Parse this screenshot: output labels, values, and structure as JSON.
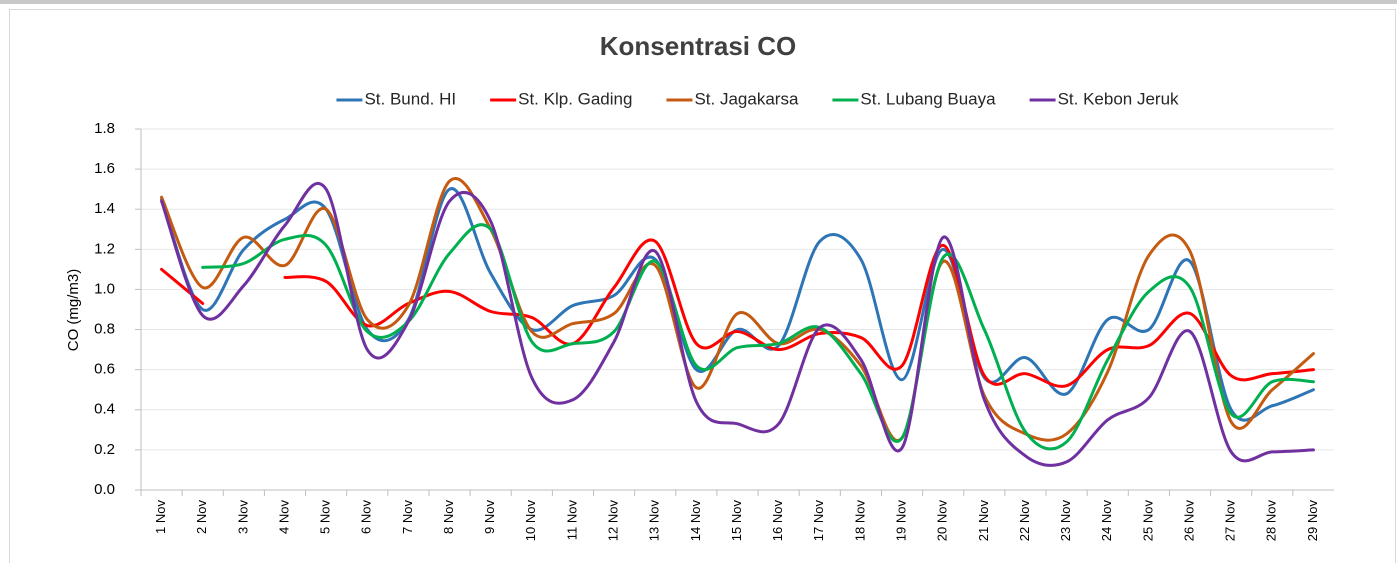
{
  "chart_data": {
    "type": "line",
    "title": "Konsentrasi CO",
    "y_label": "CO (mg/m3)",
    "categories": [
      "1 Nov",
      "2 Nov",
      "3 Nov",
      "4 Nov",
      "5 Nov",
      "6 Nov",
      "7 Nov",
      "8 Nov",
      "9 Nov",
      "10 Nov",
      "11 Nov",
      "12 Nov",
      "13 Nov",
      "14 Nov",
      "15 Nov",
      "16 Nov",
      "17 Nov",
      "18 Nov",
      "19 Nov",
      "20 Nov",
      "21 Nov",
      "22 Nov",
      "23 Nov",
      "24 Nov",
      "25 Nov",
      "26 Nov",
      "27 Nov",
      "28 Nov",
      "29 Nov"
    ],
    "series": [
      {
        "name": "St. Bund. HI",
        "color": "#2e75b6",
        "values": [
          1.45,
          0.9,
          1.2,
          1.35,
          1.4,
          0.8,
          0.85,
          1.5,
          1.08,
          0.8,
          0.92,
          0.97,
          1.15,
          0.6,
          0.8,
          0.72,
          1.24,
          1.15,
          0.55,
          1.2,
          0.56,
          0.66,
          0.48,
          0.85,
          0.8,
          1.14,
          0.4,
          0.42,
          0.5
        ]
      },
      {
        "name": "St. Klp. Gading",
        "color": "#ff0000",
        "values": [
          1.1,
          0.93,
          null,
          1.06,
          1.04,
          0.82,
          0.93,
          0.99,
          0.89,
          0.86,
          0.73,
          1.01,
          1.24,
          0.73,
          0.79,
          0.7,
          0.78,
          0.76,
          0.62,
          1.22,
          0.57,
          0.58,
          0.52,
          0.7,
          0.72,
          0.88,
          0.57,
          0.58,
          0.6
        ]
      },
      {
        "name": "St. Jagakarsa",
        "color": "#c55a11",
        "values": [
          1.46,
          1.01,
          1.26,
          1.12,
          1.4,
          0.85,
          0.92,
          1.54,
          1.3,
          0.79,
          0.83,
          0.88,
          1.12,
          0.51,
          0.88,
          0.73,
          0.8,
          0.62,
          0.26,
          1.14,
          0.47,
          0.28,
          0.28,
          0.59,
          1.17,
          1.19,
          0.34,
          0.5,
          0.68
        ]
      },
      {
        "name": "St. Lubang Buaya",
        "color": "#00b050",
        "values": [
          null,
          1.11,
          1.13,
          1.25,
          1.22,
          0.79,
          0.84,
          1.18,
          1.3,
          0.74,
          0.73,
          0.79,
          1.14,
          0.62,
          0.71,
          0.73,
          0.81,
          0.58,
          0.26,
          1.16,
          0.8,
          0.29,
          0.24,
          0.65,
          0.99,
          1.01,
          0.38,
          0.54,
          0.54
        ]
      },
      {
        "name": "St. Kebon Jeruk",
        "color": "#7030a0",
        "values": [
          1.44,
          0.87,
          1.02,
          1.32,
          1.5,
          0.7,
          0.84,
          1.44,
          1.34,
          0.56,
          0.45,
          0.74,
          1.19,
          0.44,
          0.33,
          0.33,
          0.81,
          0.65,
          0.21,
          1.26,
          0.45,
          0.17,
          0.14,
          0.35,
          0.46,
          0.79,
          0.19,
          0.19,
          0.2
        ]
      }
    ],
    "ylim": [
      0,
      1.8
    ],
    "yticks": [
      {
        "value": 0,
        "label": "0.0"
      },
      0.2,
      0.4,
      0.6,
      0.8,
      {
        "value": 1,
        "label": "1.0"
      },
      1.2,
      1.4,
      1.6,
      1.8
    ],
    "grid": true,
    "legend": "top"
  }
}
